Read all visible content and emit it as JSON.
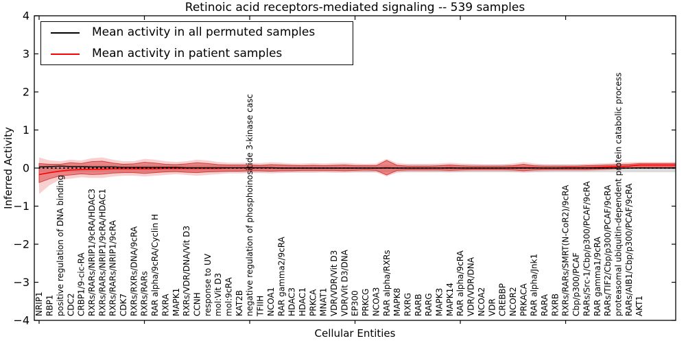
{
  "title": "Retinoic acid receptors-mediated signaling -- 539 samples",
  "axes": {
    "ylabel": "Inferred Activity",
    "xlabel": "Cellular Entities",
    "yticks": [
      "4",
      "3",
      "2",
      "1",
      "0",
      "−1",
      "−2",
      "−3",
      "−4"
    ]
  },
  "legend": {
    "items": [
      {
        "label": "Mean activity in all permuted samples",
        "color": "#000000"
      },
      {
        "label": "Mean activity in patient samples",
        "color": "#ff0000"
      }
    ]
  },
  "chart_data": {
    "type": "area",
    "title": "Retinoic acid receptors-mediated signaling -- 539 samples",
    "xlabel": "Cellular Entities",
    "ylabel": "Inferred Activity",
    "ylim": [
      -4,
      4
    ],
    "ytick_values": [
      4,
      3,
      2,
      1,
      0,
      -1,
      -2,
      -3,
      -4
    ],
    "x_major_tick_every": 10,
    "grid": false,
    "legend_position": "upper left",
    "categories": [
      "NRIP1",
      "RBP1",
      "positive regulation of DNA binding",
      "CDC2",
      "CRBP1/9-cic-RA",
      "RXRs/RARs/NRIP1/9cRA/HDAC3",
      "RXRs/RARs/NRIP1/9cRA/HDAC1",
      "RXRs/RARs/NRIP1/9cRA",
      "CDK7",
      "RXRs/RXRs/DNA/9cRA",
      "RXRs/RARs",
      "RAR alpha/9cRA/Cyclin H",
      "RXRA",
      "MAPK1",
      "RXRs/VDR/DNA/Vit D3",
      "CCNH",
      "response to UV",
      "mol:Vit D3",
      "mol:9cRA",
      "KAT2B",
      "negative regulation of phosphoinositide 3-kinase casc",
      "TFIIH",
      "NCOA1",
      "RAR gamma2/9cRA",
      "HDAC3",
      "HDAC1",
      "PRKCA",
      "MNAT1",
      "VDR/VDR/Vit D3",
      "VDR/Vit D3/DNA",
      "EP300",
      "PRKCG",
      "NCOA3",
      "RAR alpha/RXRs",
      "MAPK8",
      "RXRG",
      "RARB",
      "RARG",
      "MAPK3",
      "MAPK14",
      "RAR alpha/9cRA",
      "VDR/VDR/DNA",
      "NCOA2",
      "VDR",
      "CREBBP",
      "NCOR2",
      "PRKACA",
      "RAR alpha/Jnk1",
      "RARA",
      "RXRB",
      "RXRs/RARs/SMRT(N-CoR2)/9cRA",
      "Cbp/p300/PCAF",
      "RARs/Src-1/Cbp/p300/PCAF/9cRA",
      "RAR gamma1/9cRA",
      "RARs/TIF2/Cbp/p300/PCAF/9cRA",
      "proteasomal ubiquitin-dependent protein catabolic process",
      "RARs/AIB1/Cbp/p300/PCAF/9cRA",
      "AKT1"
    ],
    "series": [
      {
        "name": "Mean activity in all permuted samples",
        "color": "#000000",
        "values": [
          0.03,
          0.04,
          0.05,
          0.04,
          0.04,
          0.03,
          0.03,
          0.03,
          0.02,
          0.02,
          0.02,
          0.02,
          0.02,
          0.02,
          0.01,
          0.01,
          0.01,
          0.01,
          0.01,
          0.01,
          0.01,
          0.01,
          0.01,
          0,
          0,
          0,
          0,
          0,
          0,
          0,
          0,
          0,
          0,
          0,
          0,
          0,
          0,
          0,
          0,
          0,
          0,
          0,
          0,
          0,
          0,
          0,
          0,
          0,
          0,
          0,
          0,
          0,
          0,
          0,
          0,
          0,
          0,
          0
        ]
      },
      {
        "name": "Mean activity in patient samples",
        "color": "#ff0000",
        "values": [
          -0.17,
          -0.12,
          -0.08,
          -0.05,
          -0.04,
          -0.03,
          -0.03,
          -0.02,
          -0.02,
          -0.02,
          -0.02,
          -0.02,
          -0.01,
          -0.01,
          -0.01,
          -0.01,
          -0.01,
          -0.01,
          0,
          0,
          0,
          0,
          0,
          0,
          0,
          0,
          0,
          0,
          0,
          0,
          0,
          0,
          0,
          0.01,
          0,
          0,
          0,
          0,
          0,
          0.01,
          0,
          0,
          0,
          0,
          0,
          0.01,
          0.01,
          0.01,
          0,
          0,
          0.01,
          0.01,
          0.01,
          0.02,
          0.03,
          0.04,
          0.05,
          0.08
        ]
      }
    ],
    "bands": [
      {
        "name": "patient-spread-outer",
        "fill": "rgba(235,110,110,0.32)",
        "hi": [
          0.28,
          0.2,
          0.18,
          0.22,
          0.2,
          0.26,
          0.28,
          0.22,
          0.18,
          0.18,
          0.24,
          0.22,
          0.18,
          0.16,
          0.18,
          0.22,
          0.2,
          0.16,
          0.14,
          0.14,
          0.14,
          0.13,
          0.15,
          0.14,
          0.12,
          0.12,
          0.13,
          0.12,
          0.13,
          0.14,
          0.12,
          0.11,
          0.12,
          0.24,
          0.13,
          0.11,
          0.11,
          0.11,
          0.12,
          0.14,
          0.12,
          0.11,
          0.1,
          0.1,
          0.1,
          0.12,
          0.16,
          0.12,
          0.1,
          0.1,
          0.1,
          0.1,
          0.11,
          0.12,
          0.13,
          0.14,
          0.15,
          0.16
        ],
        "lo": [
          -0.68,
          -0.45,
          -0.3,
          -0.28,
          -0.24,
          -0.26,
          -0.26,
          -0.22,
          -0.2,
          -0.2,
          -0.22,
          -0.2,
          -0.18,
          -0.16,
          -0.18,
          -0.2,
          -0.18,
          -0.16,
          -0.14,
          -0.14,
          -0.13,
          -0.13,
          -0.14,
          -0.13,
          -0.12,
          -0.12,
          -0.12,
          -0.11,
          -0.12,
          -0.12,
          -0.11,
          -0.11,
          -0.11,
          -0.22,
          -0.12,
          -0.1,
          -0.1,
          -0.1,
          -0.1,
          -0.11,
          -0.1,
          -0.09,
          -0.09,
          -0.09,
          -0.09,
          -0.1,
          -0.12,
          -0.1,
          -0.09,
          -0.08,
          -0.08,
          -0.08,
          -0.08,
          -0.07,
          -0.06,
          -0.04,
          -0.02,
          0.0
        ]
      },
      {
        "name": "patient-spread-inner",
        "fill": "rgba(224,72,72,0.55)",
        "stroke": "rgba(205,45,45,0.85)",
        "hi": [
          0.12,
          0.1,
          0.1,
          0.14,
          0.12,
          0.17,
          0.18,
          0.13,
          0.1,
          0.11,
          0.15,
          0.13,
          0.1,
          0.09,
          0.11,
          0.14,
          0.12,
          0.09,
          0.08,
          0.08,
          0.08,
          0.07,
          0.09,
          0.08,
          0.07,
          0.06,
          0.07,
          0.06,
          0.07,
          0.08,
          0.06,
          0.06,
          0.06,
          0.2,
          0.07,
          0.05,
          0.05,
          0.05,
          0.06,
          0.08,
          0.06,
          0.05,
          0.05,
          0.05,
          0.05,
          0.06,
          0.1,
          0.06,
          0.05,
          0.05,
          0.05,
          0.05,
          0.06,
          0.07,
          0.08,
          0.09,
          0.1,
          0.12
        ],
        "lo": [
          -0.38,
          -0.28,
          -0.2,
          -0.18,
          -0.15,
          -0.17,
          -0.16,
          -0.13,
          -0.12,
          -0.12,
          -0.14,
          -0.12,
          -0.1,
          -0.09,
          -0.11,
          -0.12,
          -0.1,
          -0.09,
          -0.08,
          -0.08,
          -0.07,
          -0.07,
          -0.08,
          -0.07,
          -0.07,
          -0.06,
          -0.06,
          -0.06,
          -0.06,
          -0.07,
          -0.06,
          -0.05,
          -0.06,
          -0.18,
          -0.06,
          -0.05,
          -0.05,
          -0.05,
          -0.05,
          -0.06,
          -0.05,
          -0.04,
          -0.04,
          -0.04,
          -0.04,
          -0.05,
          -0.07,
          -0.05,
          -0.04,
          -0.04,
          -0.04,
          -0.04,
          -0.04,
          -0.03,
          -0.02,
          -0.01,
          0.0,
          0.02
        ]
      },
      {
        "name": "permuted-spread-gray",
        "fill": "rgba(130,130,130,0.28)",
        "hi_const": 0.09,
        "lo_const": -0.11
      }
    ],
    "zero_line": {
      "style": "dotted",
      "color": "#000000",
      "y": 0
    }
  }
}
